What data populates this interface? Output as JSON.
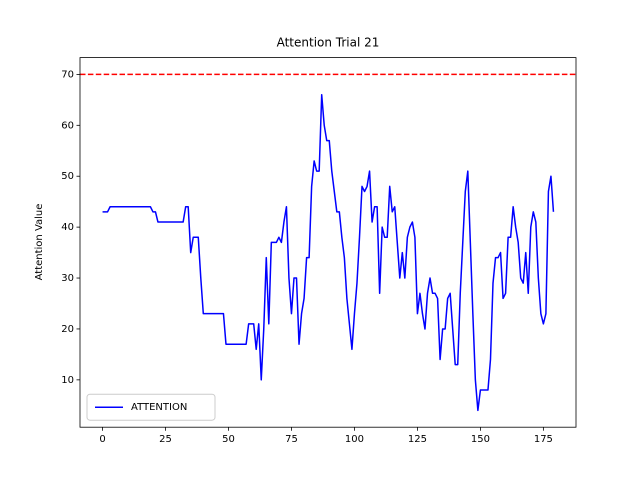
{
  "chart_data": {
    "type": "line",
    "title": "Attention Trial 21",
    "ylabel": "Attention Value",
    "x": [
      0,
      1,
      2,
      3,
      4,
      5,
      6,
      7,
      8,
      9,
      10,
      11,
      12,
      13,
      14,
      15,
      16,
      17,
      18,
      19,
      20,
      21,
      22,
      23,
      24,
      25,
      26,
      27,
      28,
      29,
      30,
      31,
      32,
      33,
      34,
      35,
      36,
      37,
      38,
      39,
      40,
      41,
      42,
      43,
      44,
      45,
      46,
      47,
      48,
      49,
      50,
      51,
      52,
      53,
      54,
      55,
      56,
      57,
      58,
      59,
      60,
      61,
      62,
      63,
      64,
      65,
      66,
      67,
      68,
      69,
      70,
      71,
      72,
      73,
      74,
      75,
      76,
      77,
      78,
      79,
      80,
      81,
      82,
      83,
      84,
      85,
      86,
      87,
      88,
      89,
      90,
      91,
      92,
      93,
      94,
      95,
      96,
      97,
      98,
      99,
      100,
      101,
      102,
      103,
      104,
      105,
      106,
      107,
      108,
      109,
      110,
      111,
      112,
      113,
      114,
      115,
      116,
      117,
      118,
      119,
      120,
      121,
      122,
      123,
      124,
      125,
      126,
      127,
      128,
      129,
      130,
      131,
      132,
      133,
      134,
      135,
      136,
      137,
      138,
      139,
      140,
      141,
      142,
      143,
      144,
      145,
      146,
      147,
      148,
      149,
      150,
      151,
      152,
      153,
      154,
      155,
      156,
      157,
      158,
      159,
      160,
      161,
      162,
      163,
      164,
      165,
      166,
      167,
      168,
      169,
      170,
      171,
      172,
      173,
      174,
      175,
      176,
      177,
      178,
      179
    ],
    "series": [
      {
        "name": "ATTENTION",
        "color": "#0000ff",
        "values": [
          43,
          43,
          43,
          44,
          44,
          44,
          44,
          44,
          44,
          44,
          44,
          44,
          44,
          44,
          44,
          44,
          44,
          44,
          44,
          44,
          43,
          43,
          41,
          41,
          41,
          41,
          41,
          41,
          41,
          41,
          41,
          41,
          41,
          44,
          44,
          35,
          38,
          38,
          38,
          30,
          23,
          23,
          23,
          23,
          23,
          23,
          23,
          23,
          23,
          17,
          17,
          17,
          17,
          17,
          17,
          17,
          17,
          17,
          21,
          21,
          21,
          16,
          21,
          10,
          20,
          34,
          21,
          37,
          37,
          37,
          38,
          37,
          41,
          44,
          30,
          23,
          30,
          30,
          17,
          23,
          26,
          34,
          34,
          48,
          53,
          51,
          51,
          66,
          60,
          57,
          57,
          51,
          47,
          43,
          43,
          38,
          34,
          26,
          21,
          16,
          23,
          29,
          38,
          48,
          47,
          48,
          51,
          41,
          44,
          44,
          27,
          40,
          38,
          38,
          48,
          43,
          44,
          37,
          30,
          35,
          30,
          38,
          40,
          41,
          38,
          23,
          27,
          23,
          20,
          27,
          30,
          27,
          27,
          26,
          14,
          20,
          20,
          26,
          27,
          20,
          13,
          13,
          27,
          37,
          47,
          51,
          37,
          23,
          10,
          4,
          8,
          8,
          8,
          8,
          14,
          29,
          34,
          34,
          35,
          26,
          27,
          38,
          38,
          44,
          40,
          37,
          30,
          29,
          35,
          27,
          40,
          43,
          41,
          30,
          23,
          21,
          23,
          47,
          50,
          43
        ]
      }
    ],
    "threshold": {
      "value": 70,
      "color": "#ff0000"
    },
    "xlim": [
      -8.95,
      187.95
    ],
    "ylim": [
      0.7,
      73.3
    ],
    "xticks": [
      0,
      25,
      50,
      75,
      100,
      125,
      150,
      175
    ],
    "yticks": [
      10,
      20,
      30,
      40,
      50,
      60,
      70
    ],
    "legend": "lower left"
  }
}
